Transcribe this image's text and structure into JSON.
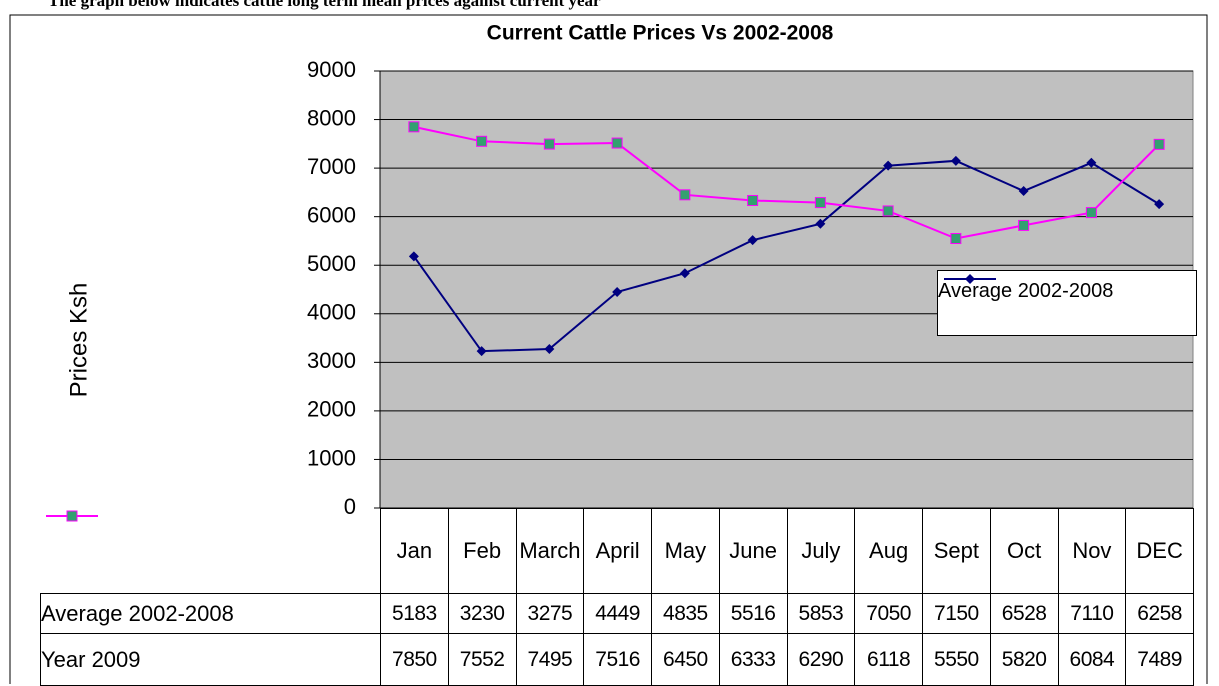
{
  "heading": "The graph below indicates cattle long term mean prices against current year",
  "chart_data": {
    "type": "line",
    "title": "Current Cattle Prices Vs 2002-2008",
    "y_label": "Prices Ksh",
    "categories": [
      "Jan",
      "Feb",
      "March",
      "April",
      "May",
      "June",
      "July",
      "Aug",
      "Sept",
      "Oct",
      "Nov",
      "DEC"
    ],
    "series": [
      {
        "name": "Average 2002-2008",
        "color": "#000080",
        "marker": "diamond",
        "marker_color": "#000080",
        "values": [
          5183,
          3230,
          3275,
          4449,
          4835,
          5516,
          5853,
          7050,
          7150,
          6528,
          7110,
          6258
        ]
      },
      {
        "name": "Year 2009",
        "color": "#ff00ff",
        "marker": "square",
        "marker_color": "#33a070",
        "values": [
          7850,
          7552,
          7495,
          7516,
          6450,
          6333,
          6290,
          6118,
          5550,
          5820,
          6084,
          7489
        ]
      }
    ],
    "ylim": [
      0,
      9000
    ],
    "yticks": [
      0,
      1000,
      2000,
      3000,
      4000,
      5000,
      6000,
      7000,
      8000,
      9000
    ],
    "grid": true,
    "plot_background": "#c0c0c0",
    "legend": "right",
    "legend_series": [
      0
    ],
    "data_table": true
  }
}
